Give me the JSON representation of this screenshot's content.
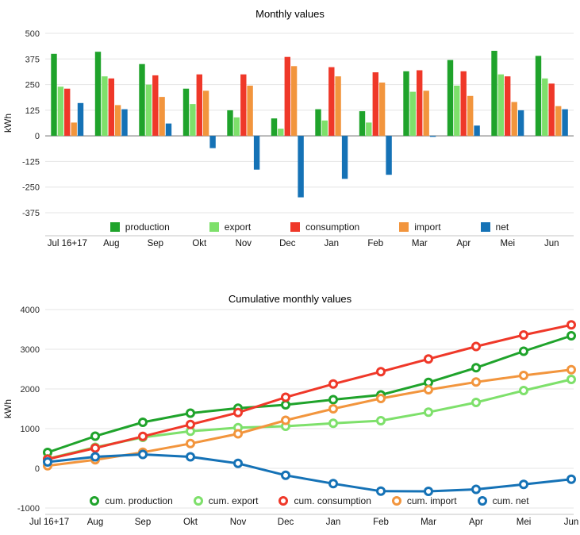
{
  "chart_data": [
    {
      "type": "bar",
      "title": "Monthly values",
      "ylabel": "kWh",
      "ylim": [
        -375,
        500
      ],
      "yticks": [
        500,
        375,
        250,
        125,
        0,
        -125,
        -250,
        -375
      ],
      "grid": true,
      "legend_position": "bottom",
      "categories": [
        "Jul 16+17",
        "Aug",
        "Sep",
        "Okt",
        "Nov",
        "Dec",
        "Jan",
        "Feb",
        "Mar",
        "Apr",
        "Mei",
        "Jun"
      ],
      "series": [
        {
          "name": "production",
          "color": "#1fa32b",
          "values": [
            400,
            410,
            350,
            230,
            125,
            85,
            130,
            120,
            315,
            370,
            415,
            390
          ]
        },
        {
          "name": "export",
          "color": "#7ee06b",
          "values": [
            240,
            290,
            250,
            155,
            90,
            35,
            75,
            65,
            215,
            245,
            300,
            280
          ]
        },
        {
          "name": "consumption",
          "color": "#ef3829",
          "values": [
            230,
            280,
            295,
            300,
            300,
            385,
            335,
            310,
            320,
            315,
            290,
            255
          ]
        },
        {
          "name": "import",
          "color": "#f2953d",
          "values": [
            65,
            150,
            190,
            220,
            245,
            340,
            290,
            260,
            220,
            195,
            165,
            145
          ]
        },
        {
          "name": "net",
          "color": "#1572b6",
          "values": [
            160,
            130,
            60,
            -60,
            -165,
            -300,
            -210,
            -190,
            -5,
            50,
            125,
            130
          ]
        }
      ]
    },
    {
      "type": "line",
      "title": "Cumulative monthly values",
      "ylabel": "kWh",
      "ylim": [
        -1000,
        4000
      ],
      "yticks": [
        4000,
        3000,
        2000,
        1000,
        0,
        -1000
      ],
      "grid": true,
      "legend_position": "bottom",
      "categories": [
        "Jul 16+17",
        "Aug",
        "Sep",
        "Okt",
        "Nov",
        "Dec",
        "Jan",
        "Feb",
        "Mar",
        "Apr",
        "Mei",
        "Jun"
      ],
      "series": [
        {
          "name": "cum. production",
          "color": "#1fa32b",
          "values": [
            400,
            810,
            1160,
            1390,
            1515,
            1600,
            1730,
            1850,
            2165,
            2535,
            2950,
            3340
          ]
        },
        {
          "name": "cum. export",
          "color": "#7ee06b",
          "values": [
            240,
            530,
            780,
            935,
            1025,
            1060,
            1135,
            1200,
            1415,
            1660,
            1960,
            2240
          ]
        },
        {
          "name": "cum. consumption",
          "color": "#ef3829",
          "values": [
            230,
            510,
            805,
            1105,
            1405,
            1790,
            2125,
            2435,
            2755,
            3070,
            3360,
            3615
          ]
        },
        {
          "name": "cum. import",
          "color": "#f2953d",
          "values": [
            65,
            215,
            405,
            625,
            870,
            1210,
            1500,
            1760,
            1980,
            2175,
            2340,
            2485
          ]
        },
        {
          "name": "cum. net",
          "color": "#1572b6",
          "values": [
            160,
            290,
            350,
            290,
            125,
            -175,
            -385,
            -575,
            -580,
            -530,
            -405,
            -275
          ]
        }
      ]
    }
  ]
}
